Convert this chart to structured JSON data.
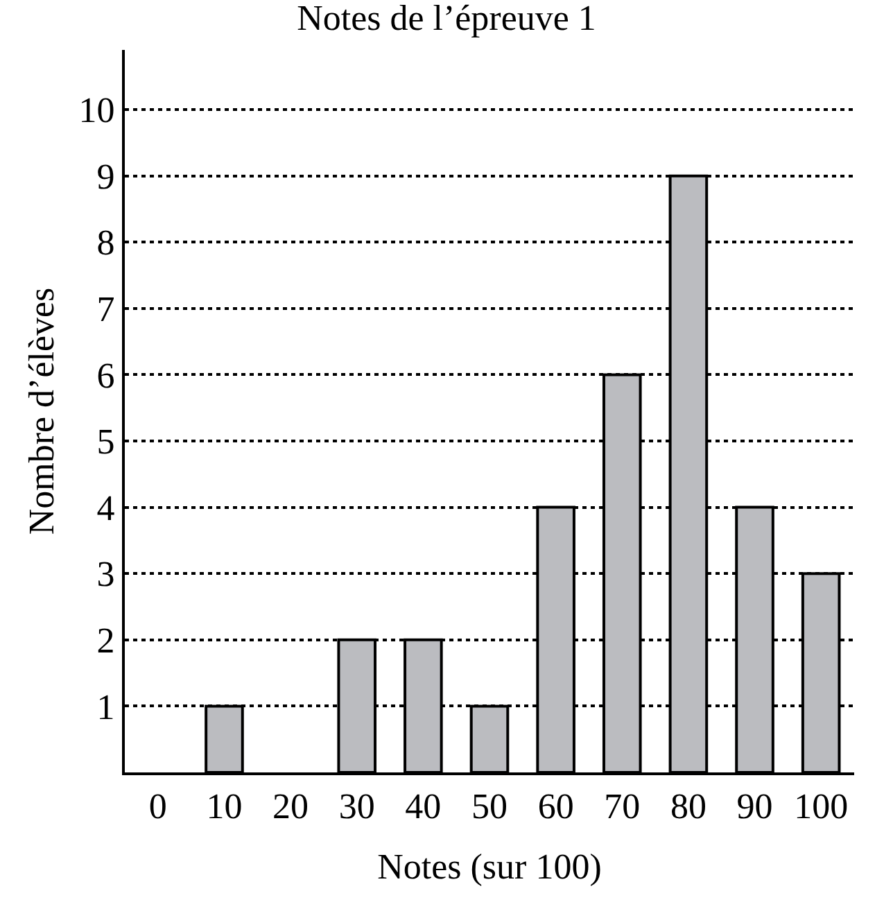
{
  "chart_data": {
    "type": "bar",
    "title": "Notes de l’épreuve 1",
    "xlabel": "Notes (sur 100)",
    "ylabel": "Nombre d’élèves",
    "categories": [
      "0",
      "10",
      "20",
      "30",
      "40",
      "50",
      "60",
      "70",
      "80",
      "90",
      "100"
    ],
    "values": [
      0,
      1,
      0,
      2,
      2,
      1,
      4,
      6,
      9,
      4,
      3
    ],
    "color": "#bbbcc0",
    "ylim": [
      0,
      10.9
    ],
    "yticks": [
      1,
      2,
      3,
      4,
      5,
      6,
      7,
      8,
      9,
      10
    ],
    "grid": "y"
  }
}
